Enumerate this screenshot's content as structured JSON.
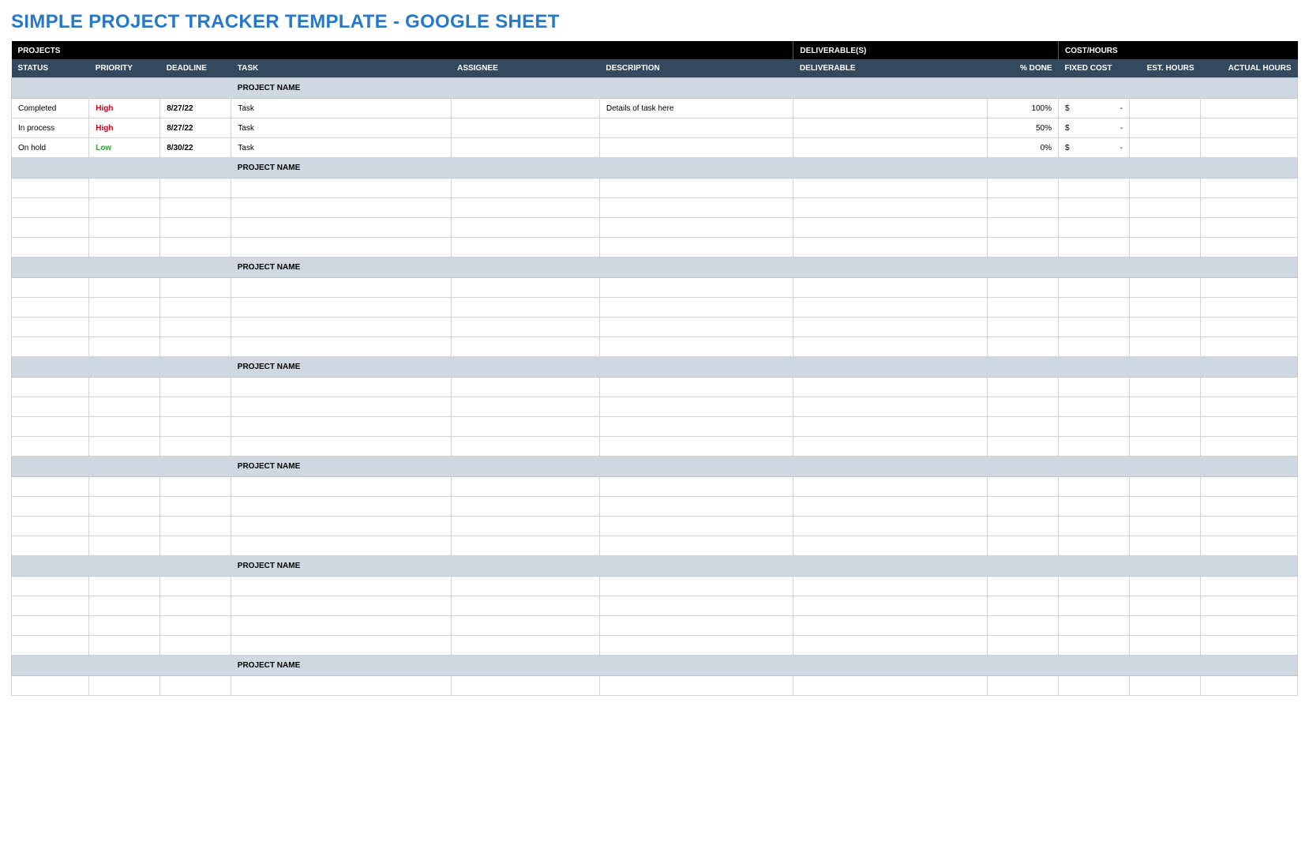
{
  "title": "SIMPLE PROJECT TRACKER TEMPLATE - GOOGLE SHEET",
  "title_color": "#2878c8",
  "colors": {
    "group_header_bg": "#000000",
    "col_header_bg": "#34495e",
    "header_text": "#ffffff",
    "section_bg": "#cfd8e0",
    "cell_border": "#cfd4d9",
    "priority_high": "#d0021b",
    "priority_low": "#2e9e3a",
    "text": "#000000"
  },
  "group_headers": {
    "projects": "PROJECTS",
    "deliverables": "DELIVERABLE(S)",
    "cost_hours": "COST/HOURS"
  },
  "columns": {
    "status": "STATUS",
    "priority": "PRIORITY",
    "deadline": "DEADLINE",
    "task": "TASK",
    "assignee": "ASSIGNEE",
    "description": "DESCRIPTION",
    "deliverable": "DELIVERABLE",
    "pct_done": "% DONE",
    "fixed_cost": "FIXED COST",
    "est_hours": "EST. HOURS",
    "actual_hours": "ACTUAL HOURS"
  },
  "section_label": "PROJECT NAME",
  "fixed_cost_symbol": "$",
  "fixed_cost_dash": "-",
  "sections": [
    {
      "rows": [
        {
          "status": "Completed",
          "priority": "High",
          "priority_color": "#d0021b",
          "deadline": "8/27/22",
          "task": "Task",
          "assignee": "",
          "description": "Details of task here",
          "deliverable": "",
          "pct_done": "100%",
          "fixed_cost": true,
          "est_hours": "",
          "actual_hours": ""
        },
        {
          "status": "In process",
          "priority": "High",
          "priority_color": "#d0021b",
          "deadline": "8/27/22",
          "task": "Task",
          "assignee": "",
          "description": "",
          "deliverable": "",
          "pct_done": "50%",
          "fixed_cost": true,
          "est_hours": "",
          "actual_hours": ""
        },
        {
          "status": "On hold",
          "priority": "Low",
          "priority_color": "#2e9e3a",
          "deadline": "8/30/22",
          "task": "Task",
          "assignee": "",
          "description": "",
          "deliverable": "",
          "pct_done": "0%",
          "fixed_cost": true,
          "est_hours": "",
          "actual_hours": ""
        }
      ]
    },
    {
      "rows": [
        {},
        {},
        {},
        {}
      ]
    },
    {
      "rows": [
        {},
        {},
        {},
        {}
      ]
    },
    {
      "rows": [
        {},
        {},
        {},
        {}
      ]
    },
    {
      "rows": [
        {},
        {},
        {},
        {}
      ]
    },
    {
      "rows": [
        {},
        {},
        {},
        {}
      ]
    },
    {
      "rows": [
        {}
      ]
    }
  ]
}
